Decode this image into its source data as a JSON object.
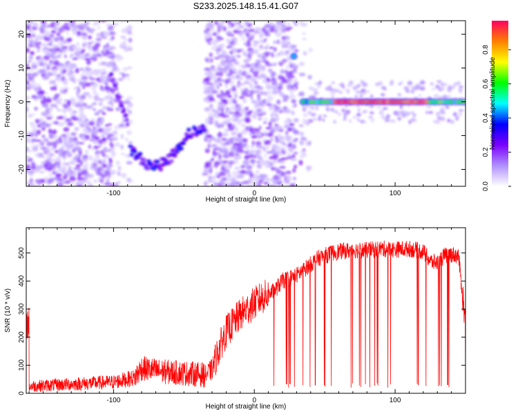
{
  "title": "S233.2025.148.15.41.G07",
  "chart_data": [
    {
      "type": "heatmap",
      "xlabel": "Height of straight line (km)",
      "ylabel": "Frequency (Hz)",
      "xlim": [
        -162,
        150
      ],
      "ylim": [
        -25,
        24
      ],
      "xticks": [
        -100,
        0,
        100
      ],
      "yticks": [
        -20,
        -10,
        0,
        10,
        20
      ],
      "colorbar": {
        "label": "Normalized spectral amplitude",
        "range": [
          0,
          0.97
        ],
        "ticks": [
          "0.0",
          "0.2",
          "0.4",
          "0.6",
          "0.8"
        ],
        "colors": [
          "#ffffff",
          "#b090ff",
          "#7a00ff",
          "#0000ff",
          "#00ffff",
          "#00ff00",
          "#ffff00",
          "#ff8000",
          "#ff0060"
        ]
      },
      "features": [
        {
          "x": [
            -160,
            -100
          ],
          "y": [
            -24,
            24
          ],
          "level": 0.1
        },
        {
          "x": [
            -100,
            -92
          ],
          "y": [
            -5,
            8
          ],
          "level": 0.2
        },
        {
          "x": [
            -87,
            -35
          ],
          "y": [
            -21,
            -9
          ],
          "level": 0.3
        },
        {
          "x": [
            -35,
            30
          ],
          "y": [
            -24,
            24
          ],
          "level": 0.1
        },
        {
          "x": [
            28,
            28
          ],
          "y": [
            13.5,
            13.5
          ],
          "level": 0.4
        },
        {
          "x": [
            33,
            150
          ],
          "y": [
            0,
            0
          ],
          "level": 0.9
        }
      ]
    },
    {
      "type": "line",
      "xlabel": "Height of straight line (km)",
      "ylabel": "SNR (10 * v/v)",
      "xlim": [
        -162,
        150
      ],
      "ylim": [
        0,
        590
      ],
      "xticks": [
        -100,
        0,
        100
      ],
      "yticks": [
        0,
        100,
        200,
        300,
        400,
        500
      ],
      "line_color": "#ff0000",
      "series": [
        {
          "x": [
            -160,
            -140,
            -120,
            -100,
            -85,
            -80,
            -70,
            -60,
            -45,
            -35,
            -30,
            -25,
            -20,
            -15,
            -10,
            -5,
            0,
            5,
            10,
            15,
            20,
            25,
            30,
            35,
            40,
            45,
            50,
            55,
            60,
            70,
            80,
            90,
            100,
            110,
            120,
            125,
            130,
            135,
            140,
            145,
            150
          ],
          "y": [
            25,
            30,
            35,
            40,
            55,
            90,
            80,
            75,
            70,
            65,
            85,
            160,
            220,
            250,
            280,
            300,
            320,
            340,
            350,
            370,
            400,
            410,
            420,
            440,
            460,
            480,
            490,
            500,
            505,
            510,
            510,
            515,
            512,
            515,
            505,
            470,
            465,
            490,
            495,
            490,
            250
          ]
        }
      ]
    }
  ]
}
